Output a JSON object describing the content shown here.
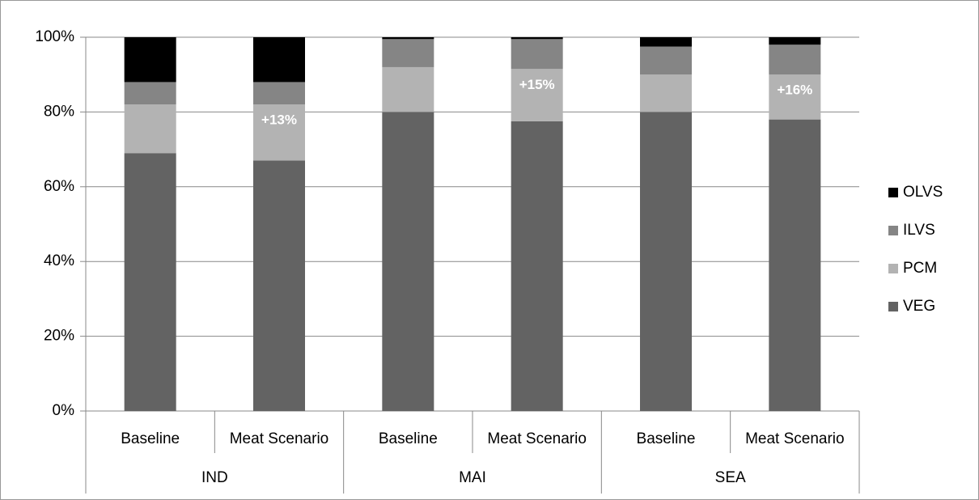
{
  "chart_data": {
    "type": "stacked_bar",
    "categories": [
      "Baseline",
      "Meat Scenario",
      "Baseline",
      "Meat Scenario",
      "Baseline",
      "Meat Scenario"
    ],
    "groups": [
      "IND",
      "MAI",
      "SEA"
    ],
    "series": [
      {
        "name": "VEG",
        "color": "#636363",
        "values": [
          69,
          67,
          80,
          77.5,
          80,
          78
        ]
      },
      {
        "name": "PCM",
        "color": "#b3b3b3",
        "values": [
          13,
          15,
          12,
          14,
          10,
          12
        ]
      },
      {
        "name": "ILVS",
        "color": "#858585",
        "values": [
          6,
          6,
          7.5,
          8,
          7.5,
          8
        ]
      },
      {
        "name": "OLVS",
        "color": "#000000",
        "values": [
          12,
          12,
          0.5,
          0.5,
          2.5,
          2
        ]
      }
    ],
    "annotations": [
      "+13%",
      "+15%",
      "+16%"
    ],
    "ylim": [
      0,
      100
    ],
    "yticks": [
      {
        "value": 0,
        "label": "0%"
      },
      {
        "value": 20,
        "label": "20%"
      },
      {
        "value": 40,
        "label": "40%"
      },
      {
        "value": 60,
        "label": "60%"
      },
      {
        "value": 80,
        "label": "80%"
      },
      {
        "value": 100,
        "label": "100%"
      }
    ],
    "grid": true,
    "legend": "right"
  }
}
